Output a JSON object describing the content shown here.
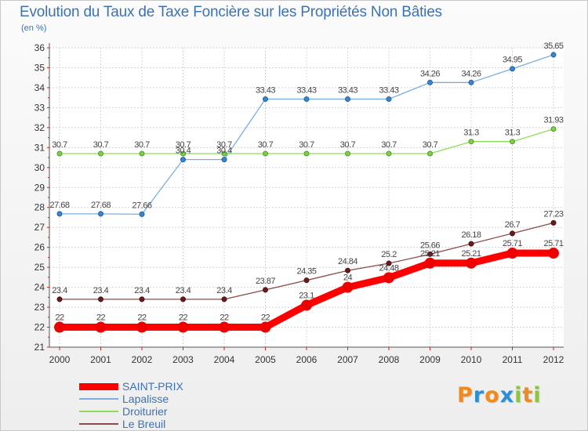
{
  "title": "Evolution du Taux de Taxe Foncière sur les Propriétés Non Bâties",
  "subtitle": "(en %)",
  "logo": {
    "text": "Proxiti",
    "letters": [
      {
        "ch": "P",
        "color": "#f08a1c"
      },
      {
        "ch": "r",
        "color": "#2c8fd6"
      },
      {
        "ch": "o",
        "color": "#f08a1c"
      },
      {
        "ch": "x",
        "color": "#2c8fd6"
      },
      {
        "ch": "i",
        "color": "#8cc63f"
      },
      {
        "ch": "t",
        "color": "#f08a1c"
      },
      {
        "ch": "i",
        "color": "#8cc63f"
      }
    ]
  },
  "chart_data": {
    "type": "line",
    "title": "Evolution du Taux de Taxe Foncière sur les Propriétés Non Bâties",
    "ylabel": "(en %)",
    "xlabel": "",
    "x": [
      "2000",
      "2001",
      "2002",
      "2003",
      "2004",
      "2005",
      "2006",
      "2007",
      "2008",
      "2009",
      "2010",
      "2011",
      "2012"
    ],
    "ylim": [
      21,
      36
    ],
    "yticks": [
      "21",
      "22",
      "23",
      "24",
      "25",
      "26",
      "27",
      "28",
      "29",
      "30",
      "31",
      "32",
      "33",
      "34",
      "35",
      "36"
    ],
    "grid": true,
    "legend_position": "bottom-left",
    "series": [
      {
        "name": "SAINT-PRIX",
        "color": "#ff0000",
        "values": [
          22,
          22,
          22,
          22,
          22,
          22,
          23.1,
          24,
          24.48,
          25.21,
          25.21,
          25.71,
          25.71
        ],
        "labels": [
          "22",
          "22",
          "22",
          "22",
          "22",
          "22",
          "23.1",
          "24",
          "24.48",
          "25.21",
          "25.21",
          "25.71",
          "25.71"
        ]
      },
      {
        "name": "Lapalisse",
        "color": "#7aaee0",
        "values": [
          27.68,
          27.68,
          27.66,
          30.4,
          30.4,
          33.43,
          33.43,
          33.43,
          33.43,
          34.26,
          34.26,
          34.95,
          35.65
        ],
        "labels": [
          "27.68",
          "27.68",
          "27.66",
          "30.4",
          "30.4",
          "33.43",
          "33.43",
          "33.43",
          "33.43",
          "34.26",
          "34.26",
          "34.95",
          "35.65"
        ]
      },
      {
        "name": "Droiturier",
        "color": "#8fdc5a",
        "values": [
          30.7,
          30.7,
          30.7,
          30.7,
          30.7,
          30.7,
          30.7,
          30.7,
          30.7,
          30.7,
          31.3,
          31.3,
          31.93
        ],
        "labels": [
          "30.7",
          "30.7",
          "30.7",
          "30.7",
          "30.7",
          "30.7",
          "30.7",
          "30.7",
          "30.7",
          "30.7",
          "31.3",
          "31.3",
          "31.93"
        ]
      },
      {
        "name": "Le Breuil",
        "color": "#8b4a4a",
        "values": [
          23.4,
          23.4,
          23.4,
          23.4,
          23.4,
          23.87,
          24.35,
          24.84,
          25.2,
          25.66,
          26.18,
          26.7,
          27.23
        ],
        "labels": [
          "23.4",
          "23.4",
          "23.4",
          "23.4",
          "23.4",
          "23.87",
          "24.35",
          "24.84",
          "25.2",
          "25.66",
          "26.18",
          "26.7",
          "27.23"
        ]
      }
    ]
  }
}
